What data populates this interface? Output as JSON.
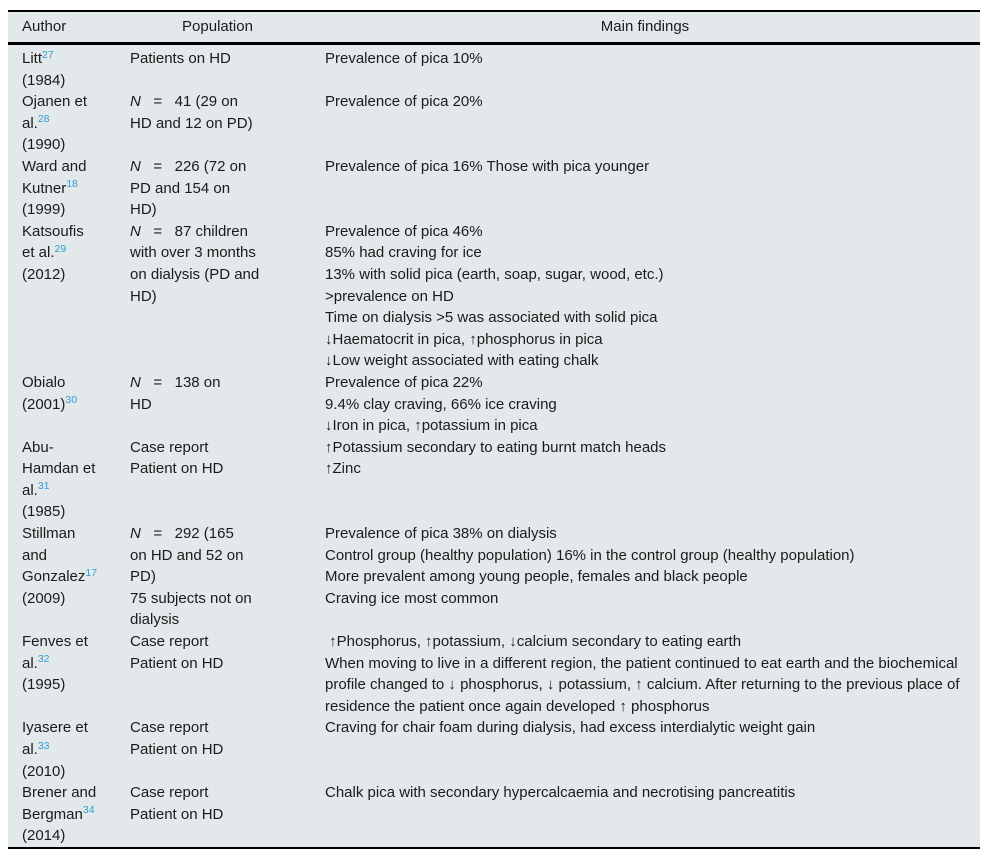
{
  "colors": {
    "table_background": "#e3e8ea",
    "text": "#1b1b1b",
    "reference_link_blue": "#309fd1",
    "rule_black": "#000000"
  },
  "table": {
    "headers": [
      "Author",
      "Population",
      "Main findings"
    ],
    "rows": [
      {
        "author": {
          "pre": "Litt",
          "ref": "27",
          "post": "\n(1984)"
        },
        "population": {
          "n_italic": "",
          "text": "Patients on HD"
        },
        "findings": "Prevalence of pica 10%"
      },
      {
        "author": {
          "pre": "Ojanen et\nal.",
          "ref": "28",
          "post": "\n(1990)"
        },
        "population": {
          "n_italic": "N",
          "text": "   =   41 (29 on\nHD and 12 on PD)"
        },
        "findings": "Prevalence of pica 20%"
      },
      {
        "author": {
          "pre": "Ward and\nKutner",
          "ref": "18",
          "post": "\n(1999)"
        },
        "population": {
          "n_italic": "N",
          "text": "   =   226 (72 on\nPD and 154 on\nHD)"
        },
        "findings": "Prevalence of pica 16% Those with pica younger"
      },
      {
        "author": {
          "pre": "Katsoufis\net al.",
          "ref": "29",
          "post": "\n(2012)"
        },
        "population": {
          "n_italic": "N",
          "text": "   =   87 children\nwith over 3 months\non dialysis (PD and\nHD)"
        },
        "findings": "Prevalence of pica 46%\n85% had craving for ice\n13% with solid pica (earth, soap, sugar, wood, etc.)\n>prevalence on HD\nTime on dialysis >5 was associated with solid pica\n↓Haematocrit in pica, ↑phosphorus in pica\n↓Low weight associated with eating chalk"
      },
      {
        "author": {
          "pre": "Obialo\n(2001)",
          "ref": "30",
          "post": ""
        },
        "population": {
          "n_italic": "N",
          "text": "   =   138 on\nHD"
        },
        "findings": "Prevalence of pica 22%\n9.4% clay craving, 66% ice craving\n↓Iron in pica, ↑potassium in pica"
      },
      {
        "author": {
          "pre": "Abu-\nHamdan et\nal.",
          "ref": "31",
          "post": "\n(1985)"
        },
        "population": {
          "n_italic": "",
          "text": "Case report\nPatient on HD"
        },
        "findings": "↑Potassium secondary to eating burnt match heads\n↑Zinc"
      },
      {
        "author": {
          "pre": "Stillman\nand\nGonzalez",
          "ref": "17",
          "post": "\n(2009)"
        },
        "population": {
          "n_italic": "N",
          "text": "   =   292 (165\non HD and 52 on\nPD)\n75 subjects not on\ndialysis"
        },
        "findings": "Prevalence of pica 38% on dialysis\nControl group (healthy population) 16% in the control group (healthy population)\nMore prevalent among young people, females and black people\nCraving ice most common"
      },
      {
        "author": {
          "pre": "Fenves et\nal.",
          "ref": "32",
          "post": "\n(1995)"
        },
        "population": {
          "n_italic": "",
          "text": "Case report\nPatient on HD"
        },
        "findings": " ↑Phosphorus, ↑potassium, ↓calcium secondary to eating earth\nWhen moving to live in a different region, the patient continued to eat earth and the biochemical profile changed to ↓ phosphorus, ↓ potassium, ↑ calcium. After returning to the previous place of residence the patient once again developed ↑ phosphorus"
      },
      {
        "author": {
          "pre": "Iyasere et\nal.",
          "ref": "33",
          "post": "\n(2010)"
        },
        "population": {
          "n_italic": "",
          "text": "Case report\nPatient on HD"
        },
        "findings": "Craving for chair foam during dialysis, had excess interdialytic weight gain"
      },
      {
        "author": {
          "pre": "Brener and\nBergman",
          "ref": "34",
          "post": "\n(2014)"
        },
        "population": {
          "n_italic": "",
          "text": "Case report\nPatient on HD"
        },
        "findings": "Chalk pica with secondary hypercalcaemia and necrotising pancreatitis"
      }
    ]
  }
}
